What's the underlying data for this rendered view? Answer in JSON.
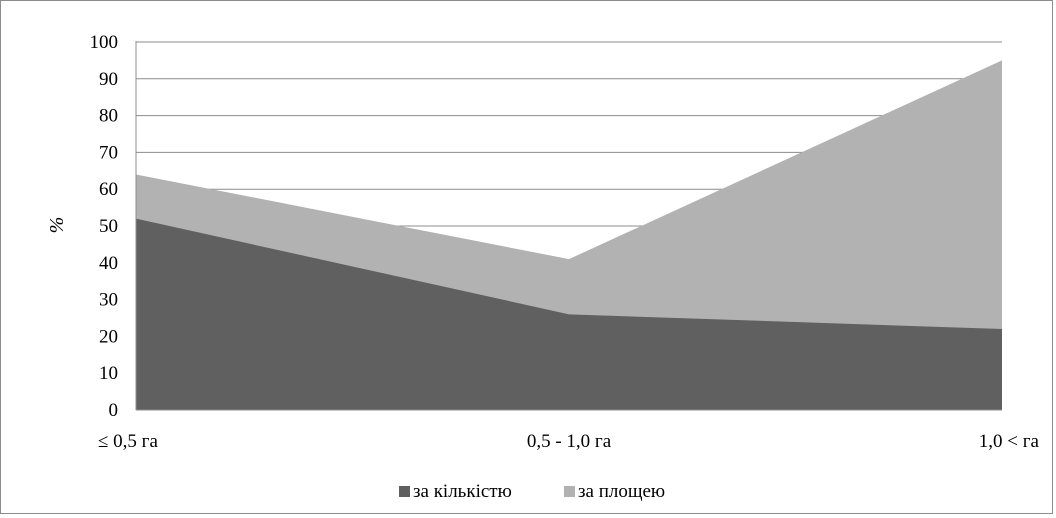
{
  "chart_data": {
    "type": "area",
    "categories": [
      "≤ 0,5 га",
      "0,5 - 1,0 га",
      "1,0 < га"
    ],
    "series": [
      {
        "name": "за кількістю",
        "values": [
          52,
          26,
          22
        ],
        "color": "#606060"
      },
      {
        "name": "за площею",
        "values": [
          64,
          41,
          95
        ],
        "color": "#b2b2b2"
      }
    ],
    "ylabel": "%",
    "ylim": [
      0,
      100
    ],
    "yticks": [
      0,
      10,
      20,
      30,
      40,
      50,
      60,
      70,
      80,
      90,
      100
    ],
    "grid": true,
    "legend": "bottom"
  }
}
